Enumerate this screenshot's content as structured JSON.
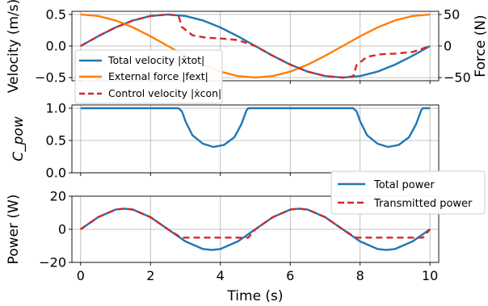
{
  "chart_data": [
    {
      "type": "line",
      "panel": "velocity",
      "ylabel": "Velocity (m/s)",
      "y2label": "Force (N)",
      "xlim": [
        -0.25,
        10.25
      ],
      "ylim": [
        -0.55,
        0.55
      ],
      "y2lim": [
        -55,
        55
      ],
      "yticks": [
        "0.5",
        "0.0",
        "−0.5"
      ],
      "yticks_values": [
        0.5,
        0.0,
        -0.5
      ],
      "y2ticks": [
        "50",
        "0",
        "−50"
      ],
      "y2ticks_values": [
        50,
        0,
        -50
      ],
      "grid": true,
      "legend_position": "left",
      "series": [
        {
          "name": "Total velocity |ẋtot|",
          "axis": "left",
          "color": "#1f77b4",
          "style": "solid",
          "x": [
            0,
            0.5,
            1.0,
            1.5,
            2.0,
            2.5,
            3.0,
            3.5,
            4.0,
            4.5,
            5.0,
            5.5,
            6.0,
            6.5,
            7.0,
            7.5,
            8.0,
            8.5,
            9.0,
            9.5,
            10.0
          ],
          "y": [
            0.0,
            0.155,
            0.294,
            0.405,
            0.476,
            0.5,
            0.476,
            0.405,
            0.294,
            0.155,
            0.0,
            -0.155,
            -0.294,
            -0.405,
            -0.476,
            -0.5,
            -0.476,
            -0.405,
            -0.294,
            -0.155,
            0.0
          ]
        },
        {
          "name": "External force |fext|",
          "axis": "right",
          "color": "#ff7f0e",
          "style": "solid",
          "x": [
            0,
            0.5,
            1.0,
            1.5,
            2.0,
            2.5,
            3.0,
            3.5,
            4.0,
            4.5,
            5.0,
            5.5,
            6.0,
            6.5,
            7.0,
            7.5,
            8.0,
            8.5,
            9.0,
            9.5,
            10.0
          ],
          "y": [
            50.0,
            47.6,
            40.5,
            29.4,
            15.5,
            0.0,
            -15.5,
            -29.4,
            -40.5,
            -47.6,
            -50.0,
            -47.6,
            -40.5,
            -29.4,
            -15.5,
            0.0,
            15.5,
            29.4,
            40.5,
            47.6,
            50.0
          ]
        },
        {
          "name": "Control velocity |ẋcon|",
          "axis": "left",
          "color": "#d62728",
          "style": "dashed",
          "x": [
            0,
            0.5,
            1.0,
            1.5,
            2.0,
            2.5,
            2.8,
            2.9,
            3.2,
            3.6,
            4.0,
            4.5,
            5.0,
            5.5,
            6.0,
            6.5,
            7.0,
            7.5,
            7.8,
            7.9,
            8.2,
            8.6,
            9.0,
            9.5,
            10.0
          ],
          "y": [
            0.0,
            0.155,
            0.294,
            0.405,
            0.476,
            0.5,
            0.48,
            0.3,
            0.17,
            0.13,
            0.12,
            0.095,
            0.0,
            -0.155,
            -0.294,
            -0.405,
            -0.476,
            -0.5,
            -0.48,
            -0.3,
            -0.17,
            -0.13,
            -0.12,
            -0.095,
            0.0
          ]
        }
      ]
    },
    {
      "type": "line",
      "panel": "cpow",
      "ylabel": "C_pow",
      "xlim": [
        -0.25,
        10.25
      ],
      "ylim": [
        0.0,
        1.05
      ],
      "yticks": [
        "1.0",
        "0.5",
        "0.0"
      ],
      "yticks_values": [
        1.0,
        0.5,
        0.0
      ],
      "grid": true,
      "series": [
        {
          "color": "#1f77b4",
          "style": "solid",
          "x": [
            0,
            2.8,
            2.9,
            3.0,
            3.2,
            3.5,
            3.8,
            4.1,
            4.4,
            4.6,
            4.75,
            4.8,
            7.8,
            7.9,
            8.0,
            8.2,
            8.5,
            8.8,
            9.1,
            9.4,
            9.6,
            9.75,
            9.8,
            10.0
          ],
          "y": [
            1.0,
            1.0,
            0.95,
            0.8,
            0.58,
            0.45,
            0.4,
            0.43,
            0.55,
            0.75,
            0.97,
            1.0,
            1.0,
            0.95,
            0.8,
            0.58,
            0.45,
            0.4,
            0.43,
            0.55,
            0.75,
            0.97,
            1.0,
            1.0
          ]
        }
      ]
    },
    {
      "type": "line",
      "panel": "power",
      "ylabel": "Power (W)",
      "xlabel": "Time (s)",
      "xlim": [
        -0.25,
        10.25
      ],
      "ylim": [
        -20,
        20
      ],
      "yticks": [
        "20",
        "0",
        "−20"
      ],
      "yticks_values": [
        20,
        0,
        -20
      ],
      "xticks": [
        "0",
        "2",
        "4",
        "6",
        "8",
        "10"
      ],
      "xticks_values": [
        0,
        2,
        4,
        6,
        8,
        10
      ],
      "grid": true,
      "legend_position": "top-right",
      "series": [
        {
          "name": "Total power",
          "color": "#1f77b4",
          "style": "solid",
          "x": [
            0,
            0.5,
            1.0,
            1.25,
            1.5,
            2.0,
            2.5,
            3.0,
            3.5,
            3.75,
            4.0,
            4.5,
            5.0,
            5.5,
            6.0,
            6.25,
            6.5,
            7.0,
            7.5,
            8.0,
            8.5,
            8.75,
            9.0,
            9.5,
            10.0
          ],
          "y": [
            0.0,
            7.3,
            11.9,
            12.5,
            11.9,
            7.3,
            0.0,
            -7.3,
            -11.9,
            -12.5,
            -11.9,
            -7.3,
            0.0,
            7.3,
            11.9,
            12.5,
            11.9,
            7.3,
            0.0,
            -7.3,
            -11.9,
            -12.5,
            -11.9,
            -7.3,
            0.0
          ]
        },
        {
          "name": "Transmitted power",
          "color": "#d62728",
          "style": "dashed",
          "x": [
            0,
            0.5,
            1.0,
            1.25,
            1.5,
            2.0,
            2.5,
            2.8,
            2.9,
            4.8,
            5.0,
            5.5,
            6.0,
            6.25,
            6.5,
            7.0,
            7.5,
            7.8,
            7.9,
            9.8,
            10.0
          ],
          "y": [
            0.0,
            7.3,
            11.9,
            12.5,
            11.9,
            7.3,
            0.0,
            -4.0,
            -5.0,
            -5.0,
            0.0,
            7.3,
            11.9,
            12.5,
            11.9,
            7.3,
            0.0,
            -4.0,
            -5.0,
            -5.0,
            0.0
          ]
        }
      ]
    }
  ]
}
